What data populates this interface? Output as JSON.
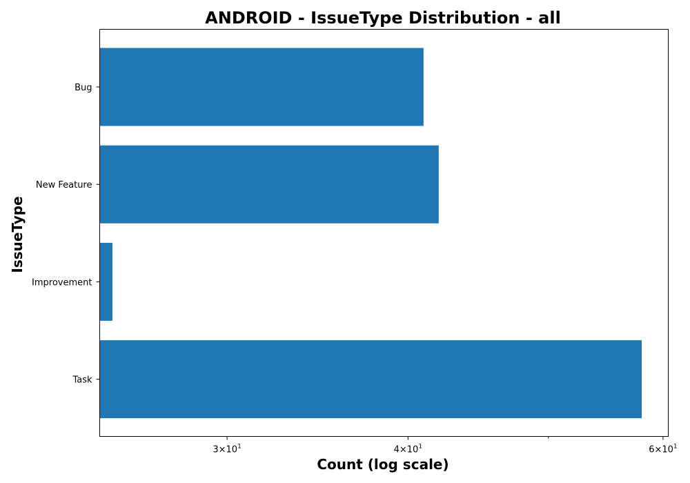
{
  "chart_data": {
    "type": "bar",
    "orientation": "horizontal",
    "title": "ANDROID - IssueType Distribution - all",
    "xlabel": "Count (log scale)",
    "ylabel": "IssueType",
    "x_scale": "log",
    "xlim": [
      24.5,
      60.5
    ],
    "categories": [
      "Bug",
      "New Feature",
      "Improvement",
      "Task"
    ],
    "values": [
      41,
      42,
      25,
      58
    ],
    "x_major_ticks": [
      {
        "value": 30,
        "base": "3",
        "exp": "1"
      },
      {
        "value": 40,
        "base": "4",
        "exp": "1"
      },
      {
        "value": 60,
        "base": "6",
        "exp": "1"
      }
    ],
    "x_minor_ticks": [
      50
    ],
    "bar_color": "#1f77b4",
    "grid": false,
    "legend": "none"
  }
}
